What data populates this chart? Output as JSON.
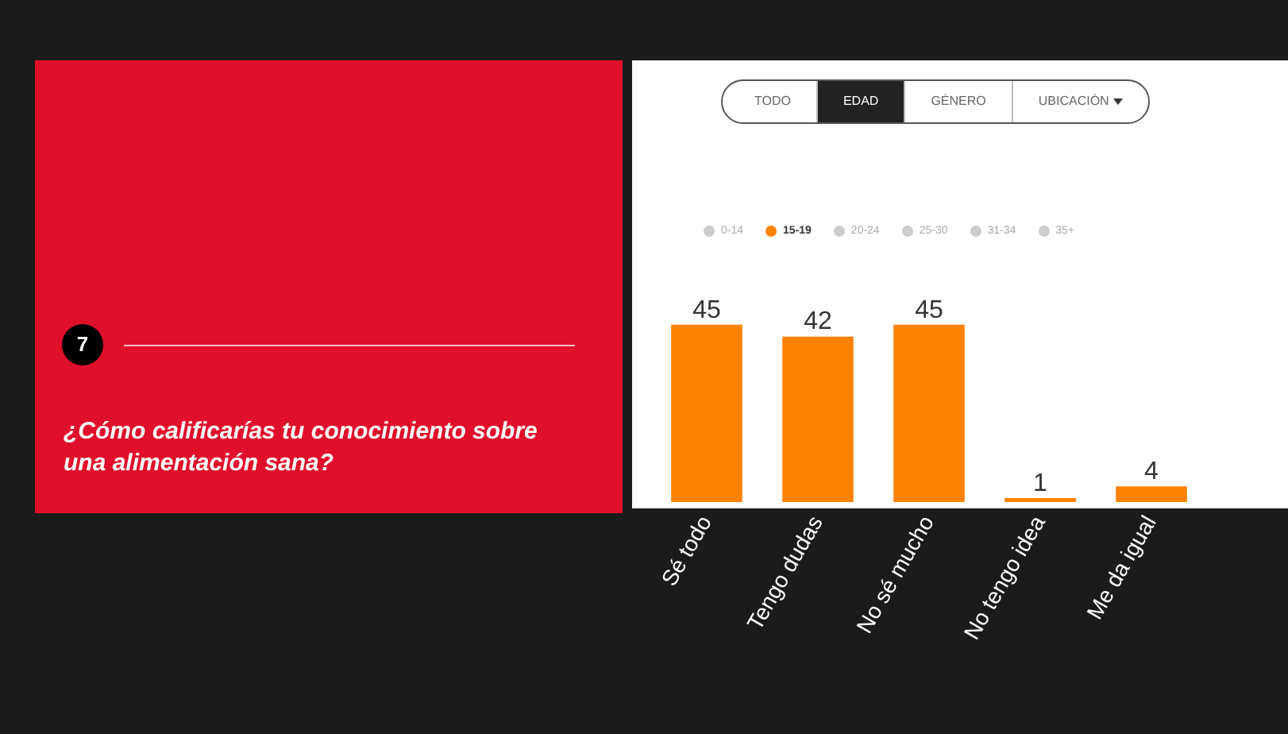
{
  "chart_data": {
    "type": "bar",
    "title": "¿Cómo calificarías tu conocimiento sobre una alimentación sana?",
    "categories": [
      "Sé todo",
      "Tengo dudas",
      "No sé mucho",
      "No tengo idea",
      "Me da igual"
    ],
    "series": [
      {
        "name": "15-19",
        "color": "#ff8200",
        "values": [
          45,
          42,
          45,
          1,
          4
        ]
      }
    ],
    "annotations": [
      "7",
      "TODO",
      "EDAD",
      "GÉNERO",
      "UBICACIÓN",
      "0-14",
      "20-24",
      "25-30",
      "31-34",
      "35+"
    ],
    "data_labels": true,
    "legend": "top",
    "grid": false
  }
}
